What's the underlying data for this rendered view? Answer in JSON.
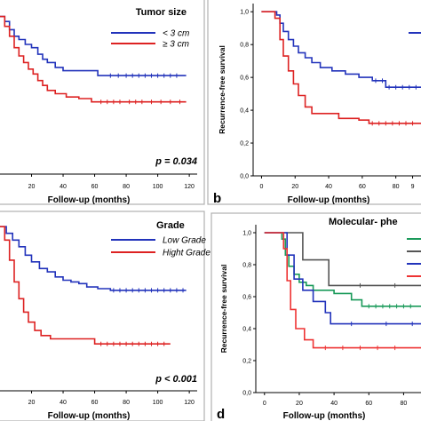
{
  "chart_data": [
    {
      "type": "line",
      "panel_label": "",
      "xlabel": "Follow-up (months)",
      "ylabel": "",
      "x_ticks": [
        "20",
        "40",
        "60",
        "80",
        "100",
        "120"
      ],
      "y_ticks": [],
      "xlim": [
        0,
        125
      ],
      "ylim": [
        0,
        1.05
      ],
      "legend_title": "Tumor size",
      "legend_position": "top-right",
      "annotation": "p = 0.034",
      "series": [
        {
          "name": "< 3 cm",
          "color": "#2233bb",
          "points": [
            [
              0,
              0.96
            ],
            [
              3,
              0.93
            ],
            [
              6,
              0.88
            ],
            [
              9,
              0.84
            ],
            [
              12,
              0.82
            ],
            [
              16,
              0.79
            ],
            [
              20,
              0.77
            ],
            [
              24,
              0.73
            ],
            [
              27,
              0.7
            ],
            [
              30,
              0.68
            ],
            [
              35,
              0.65
            ],
            [
              40,
              0.63
            ],
            [
              48,
              0.63
            ],
            [
              55,
              0.63
            ],
            [
              62,
              0.6
            ],
            [
              75,
              0.6
            ],
            [
              90,
              0.6
            ],
            [
              105,
              0.6
            ],
            [
              118,
              0.6
            ]
          ],
          "censor_x": [
            70,
            75,
            80,
            84,
            88,
            92,
            96,
            100,
            104,
            108,
            112
          ]
        },
        {
          "name": "≥ 3 cm",
          "color": "#dd2222",
          "points": [
            [
              0,
              0.96
            ],
            [
              3,
              0.9
            ],
            [
              6,
              0.84
            ],
            [
              9,
              0.77
            ],
            [
              12,
              0.72
            ],
            [
              15,
              0.68
            ],
            [
              18,
              0.64
            ],
            [
              21,
              0.61
            ],
            [
              24,
              0.57
            ],
            [
              27,
              0.54
            ],
            [
              30,
              0.51
            ],
            [
              35,
              0.49
            ],
            [
              42,
              0.47
            ],
            [
              50,
              0.46
            ],
            [
              58,
              0.44
            ],
            [
              65,
              0.44
            ],
            [
              85,
              0.44
            ],
            [
              100,
              0.44
            ],
            [
              118,
              0.44
            ]
          ],
          "censor_x": [
            64,
            68,
            72,
            76,
            82,
            86,
            90,
            96,
            102,
            108,
            114
          ]
        }
      ]
    },
    {
      "type": "line",
      "panel_label": "b",
      "xlabel": "Follow-up (months)",
      "ylabel": "Recurrence-free survival",
      "x_ticks": [
        "0",
        "20",
        "40",
        "60",
        "80",
        "9"
      ],
      "y_ticks": [
        "0,0",
        "0,2",
        "0,4",
        "0,6",
        "0,8",
        "1,0"
      ],
      "xlim": [
        -5,
        95
      ],
      "ylim": [
        0,
        1.05
      ],
      "legend_title": "",
      "legend_position": "top-right",
      "annotation": "",
      "series": [
        {
          "name": "",
          "color": "#2233bb",
          "points": [
            [
              0,
              1.0
            ],
            [
              6,
              1.0
            ],
            [
              9,
              0.98
            ],
            [
              11,
              0.93
            ],
            [
              13,
              0.88
            ],
            [
              16,
              0.83
            ],
            [
              19,
              0.79
            ],
            [
              22,
              0.75
            ],
            [
              26,
              0.72
            ],
            [
              30,
              0.69
            ],
            [
              35,
              0.66
            ],
            [
              42,
              0.64
            ],
            [
              50,
              0.62
            ],
            [
              58,
              0.6
            ],
            [
              66,
              0.58
            ],
            [
              74,
              0.54
            ],
            [
              82,
              0.54
            ],
            [
              95,
              0.54
            ]
          ],
          "censor_x": [
            68,
            72,
            76,
            80,
            84,
            88,
            92
          ]
        },
        {
          "name": "",
          "color": "#dd2222",
          "points": [
            [
              0,
              1.0
            ],
            [
              6,
              1.0
            ],
            [
              8,
              0.96
            ],
            [
              11,
              0.83
            ],
            [
              13,
              0.73
            ],
            [
              16,
              0.64
            ],
            [
              19,
              0.56
            ],
            [
              22,
              0.49
            ],
            [
              26,
              0.42
            ],
            [
              30,
              0.38
            ],
            [
              42,
              0.38
            ],
            [
              46,
              0.35
            ],
            [
              58,
              0.34
            ],
            [
              64,
              0.32
            ],
            [
              80,
              0.32
            ],
            [
              95,
              0.32
            ]
          ],
          "censor_x": [
            66,
            70,
            74,
            78,
            82,
            86,
            90
          ]
        }
      ]
    },
    {
      "type": "line",
      "panel_label": "",
      "xlabel": "Follow-up (months)",
      "ylabel": "",
      "x_ticks": [
        "20",
        "40",
        "60",
        "80",
        "100",
        "120"
      ],
      "y_ticks": [],
      "xlim": [
        0,
        125
      ],
      "ylim": [
        0,
        1.05
      ],
      "legend_title": "Grade",
      "legend_position": "top-right",
      "annotation": "p < 0.001",
      "series": [
        {
          "name": "Low Grade",
          "color": "#2233bb",
          "points": [
            [
              0,
              0.98
            ],
            [
              4,
              0.94
            ],
            [
              8,
              0.9
            ],
            [
              12,
              0.86
            ],
            [
              16,
              0.81
            ],
            [
              20,
              0.77
            ],
            [
              25,
              0.73
            ],
            [
              30,
              0.71
            ],
            [
              35,
              0.68
            ],
            [
              40,
              0.66
            ],
            [
              45,
              0.65
            ],
            [
              50,
              0.64
            ],
            [
              55,
              0.62
            ],
            [
              62,
              0.61
            ],
            [
              70,
              0.6
            ],
            [
              80,
              0.6
            ],
            [
              95,
              0.6
            ],
            [
              118,
              0.6
            ]
          ],
          "censor_x": [
            72,
            76,
            80,
            84,
            88,
            92,
            96,
            100,
            104,
            108,
            112,
            116
          ]
        },
        {
          "name": "Hight Grade",
          "color": "#dd2222",
          "points": [
            [
              0,
              0.98
            ],
            [
              3,
              0.9
            ],
            [
              6,
              0.78
            ],
            [
              9,
              0.65
            ],
            [
              12,
              0.55
            ],
            [
              15,
              0.47
            ],
            [
              18,
              0.41
            ],
            [
              22,
              0.36
            ],
            [
              26,
              0.33
            ],
            [
              32,
              0.31
            ],
            [
              40,
              0.31
            ],
            [
              55,
              0.31
            ],
            [
              60,
              0.28
            ],
            [
              80,
              0.28
            ],
            [
              100,
              0.28
            ],
            [
              108,
              0.28
            ]
          ],
          "censor_x": [
            64,
            68,
            72,
            76,
            80,
            84,
            88,
            92,
            96,
            100,
            104
          ]
        }
      ]
    },
    {
      "type": "line",
      "panel_label": "d",
      "xlabel": "Follow-up (months)",
      "ylabel": "Recurrence-free survival",
      "x_ticks": [
        "0",
        "20",
        "40",
        "60",
        "80"
      ],
      "y_ticks": [
        "0,0",
        "0,2",
        "0,4",
        "0,6",
        "0,8",
        "1,0"
      ],
      "xlim": [
        -5,
        90
      ],
      "ylim": [
        0,
        1.05
      ],
      "legend_title": "Molecular- phe",
      "legend_position": "top-right",
      "annotation": "",
      "series": [
        {
          "name": "",
          "color": "#1a9a5a",
          "points": [
            [
              0,
              1.0
            ],
            [
              8,
              1.0
            ],
            [
              10,
              0.96
            ],
            [
              12,
              0.86
            ],
            [
              14,
              0.79
            ],
            [
              17,
              0.74
            ],
            [
              20,
              0.69
            ],
            [
              24,
              0.67
            ],
            [
              28,
              0.64
            ],
            [
              40,
              0.62
            ],
            [
              50,
              0.58
            ],
            [
              56,
              0.54
            ],
            [
              70,
              0.54
            ],
            [
              90,
              0.54
            ]
          ],
          "censor_x": [
            60,
            64,
            68,
            72,
            76,
            80,
            84
          ]
        },
        {
          "name": "",
          "color": "#555555",
          "points": [
            [
              0,
              1.0
            ],
            [
              20,
              1.0
            ],
            [
              22,
              0.83
            ],
            [
              35,
              0.83
            ],
            [
              37,
              0.67
            ],
            [
              60,
              0.67
            ],
            [
              90,
              0.67
            ]
          ],
          "censor_x": [
            55,
            75
          ]
        },
        {
          "name": "",
          "color": "#2233bb",
          "points": [
            [
              0,
              1.0
            ],
            [
              10,
              1.0
            ],
            [
              13,
              0.86
            ],
            [
              17,
              0.71
            ],
            [
              22,
              0.64
            ],
            [
              28,
              0.57
            ],
            [
              35,
              0.5
            ],
            [
              38,
              0.43
            ],
            [
              60,
              0.43
            ],
            [
              90,
              0.43
            ]
          ],
          "censor_x": [
            50,
            70,
            85
          ]
        },
        {
          "name": "",
          "color": "#ee3333",
          "points": [
            [
              0,
              1.0
            ],
            [
              9,
              1.0
            ],
            [
              11,
              0.9
            ],
            [
              13,
              0.7
            ],
            [
              15,
              0.52
            ],
            [
              18,
              0.4
            ],
            [
              23,
              0.33
            ],
            [
              28,
              0.28
            ],
            [
              40,
              0.28
            ],
            [
              60,
              0.28
            ],
            [
              90,
              0.28
            ]
          ],
          "censor_x": [
            35,
            45,
            55,
            65,
            75
          ]
        }
      ]
    }
  ]
}
